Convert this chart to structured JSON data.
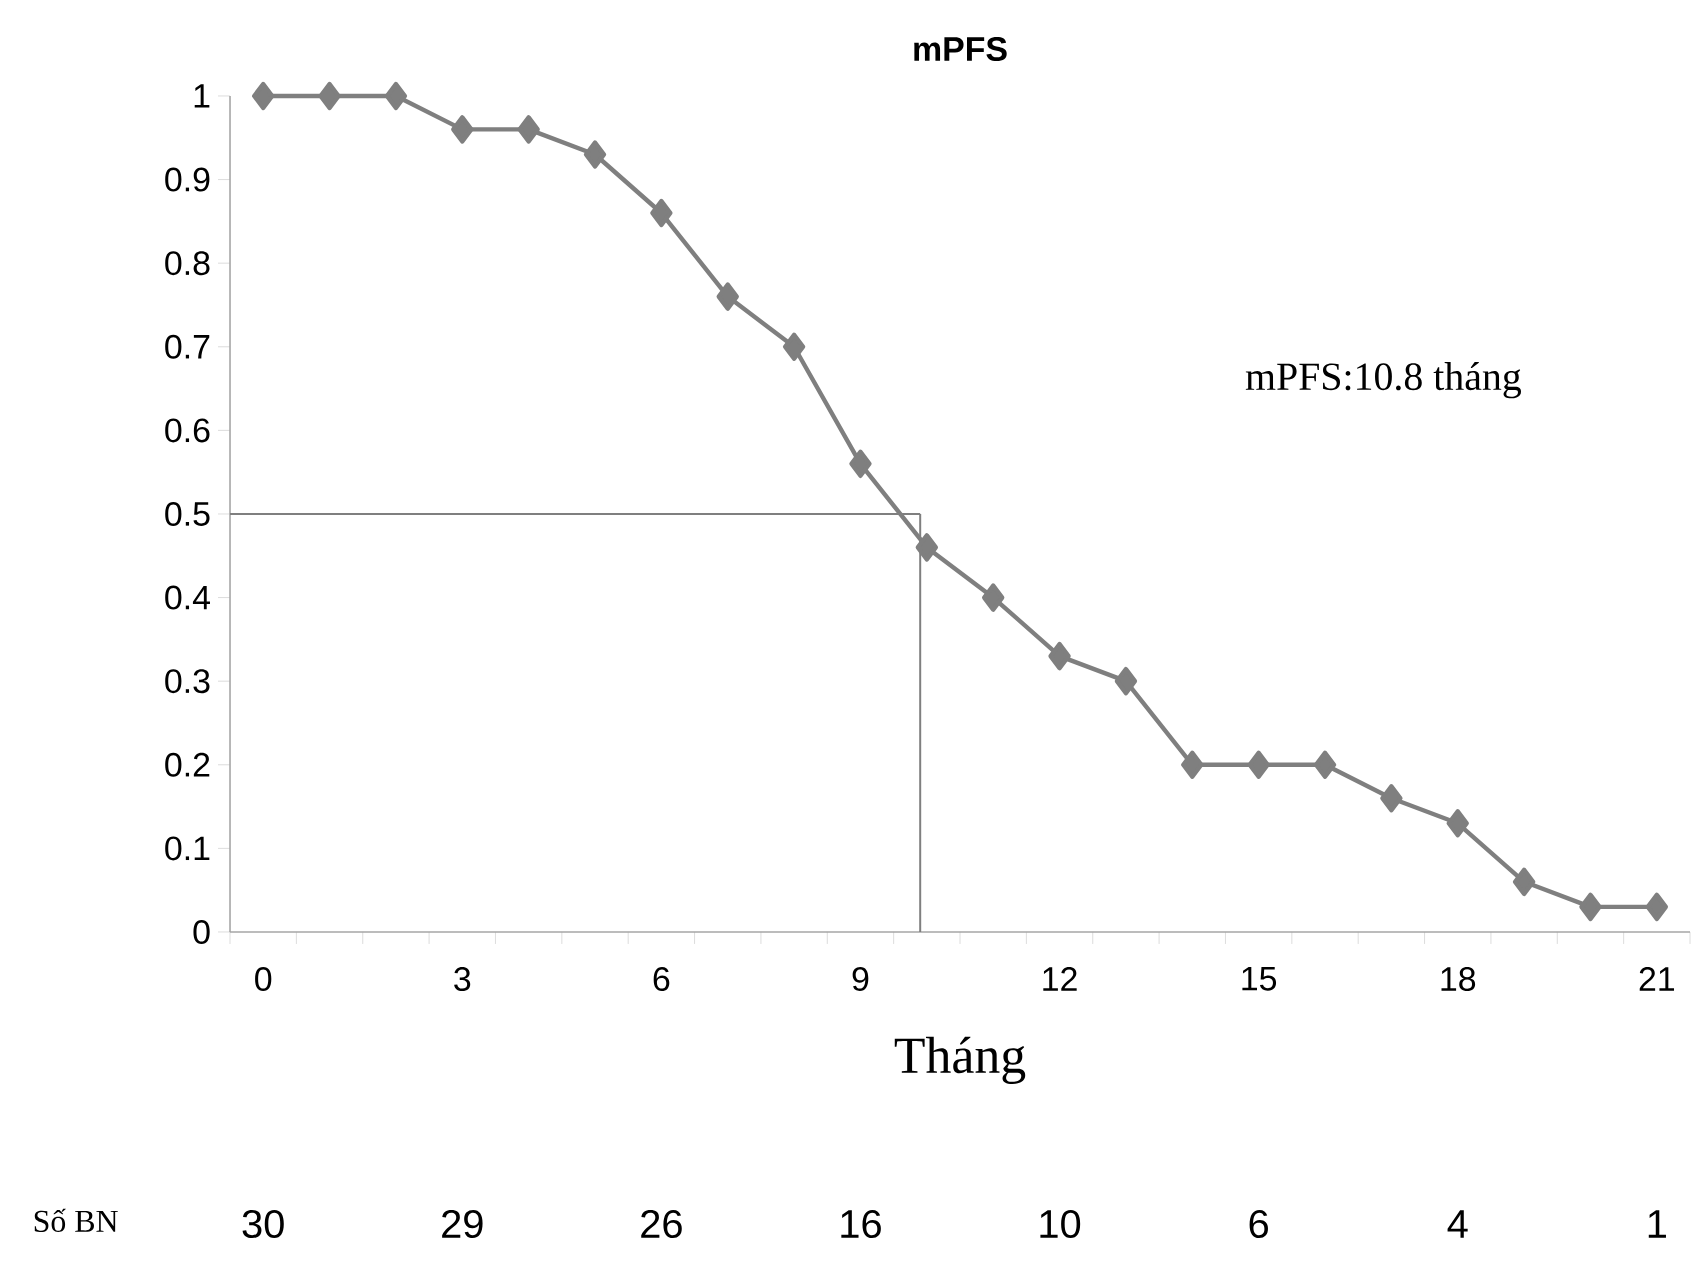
{
  "chart_data": {
    "type": "line",
    "title": "mPFS",
    "xlabel": "Tháng",
    "x": [
      0,
      1,
      2,
      3,
      4,
      5,
      6,
      7,
      8,
      9,
      10,
      11,
      12,
      13,
      14,
      15,
      16,
      17,
      18,
      19,
      20,
      21
    ],
    "series": [
      {
        "color": "#7f7f7f",
        "values": [
          1,
          1,
          1,
          0.96,
          0.96,
          0.93,
          0.86,
          0.76,
          0.7,
          0.56,
          0.46,
          0.4,
          0.33,
          0.3,
          0.2,
          0.2,
          0.2,
          0.16,
          0.13,
          0.06,
          0.03,
          0.03
        ]
      }
    ],
    "marker": "diamond",
    "line_style": "solid",
    "grid": false,
    "xlim": [
      -0.5,
      21.5
    ],
    "xticks": [
      0,
      3,
      6,
      9,
      12,
      15,
      18,
      21,
      {
        "value": -0.5,
        "label": null
      },
      {
        "value": 0.5,
        "label": null
      },
      {
        "value": 1.5,
        "label": null
      },
      {
        "value": 2.5,
        "label": null
      },
      {
        "value": 3.5,
        "label": null
      },
      {
        "value": 4.5,
        "label": null
      },
      {
        "value": 5.5,
        "label": null
      },
      {
        "value": 6.5,
        "label": null
      },
      {
        "value": 7.5,
        "label": null
      },
      {
        "value": 8.5,
        "label": null
      },
      {
        "value": 9.5,
        "label": null
      },
      {
        "value": 10.5,
        "label": null
      },
      {
        "value": 11.5,
        "label": null
      },
      {
        "value": 12.5,
        "label": null
      },
      {
        "value": 13.5,
        "label": null
      },
      {
        "value": 14.5,
        "label": null
      },
      {
        "value": 15.5,
        "label": null
      },
      {
        "value": 16.5,
        "label": null
      },
      {
        "value": 17.5,
        "label": null
      },
      {
        "value": 18.5,
        "label": null
      },
      {
        "value": 19.5,
        "label": null
      },
      {
        "value": 20.5,
        "label": null
      },
      {
        "value": 21.5,
        "label": null
      }
    ],
    "ylim": [
      0,
      1
    ],
    "yticks": [
      0,
      0.1,
      0.2,
      0.3,
      0.4,
      0.5,
      0.6,
      0.7,
      0.8,
      0.9,
      1
    ],
    "ref_lines": [
      {
        "axis": "y",
        "value": 0.5,
        "color": "#7f7f7f"
      },
      {
        "axis": "x",
        "value": 9.9,
        "color": "#7f7f7f"
      }
    ],
    "annotations": [
      "mPFS:10.8 tháng",
      "Số BN",
      "30",
      "29",
      "26",
      "16",
      "10",
      "6",
      "4",
      "1"
    ]
  }
}
